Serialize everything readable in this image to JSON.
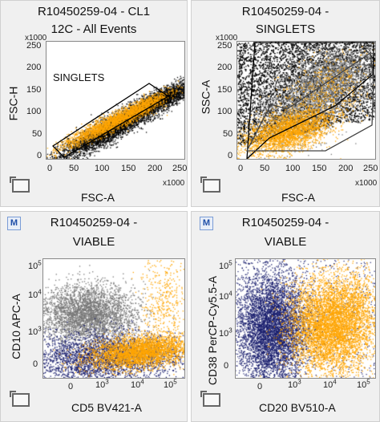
{
  "panels": [
    {
      "title_line1": "R10450259-04 - CL1",
      "title_line2": "12C - All Events",
      "ylabel": "FSC-H",
      "xlabel": "FSC-A",
      "y_mult": "x1000",
      "x_mult": "x1000",
      "yticks": [
        "250",
        "200",
        "150",
        "100",
        "50",
        "0"
      ],
      "xticks": [
        "0",
        "50",
        "100",
        "150",
        "200",
        "250"
      ],
      "gate_label": "SINGLETS"
    },
    {
      "title_line1": "R10450259-04 -",
      "title_line2": "SINGLETS",
      "ylabel": "SSC-A",
      "xlabel": "FSC-A",
      "y_mult": "x1000",
      "x_mult": "x1000",
      "yticks": [
        "250",
        "200",
        "150",
        "100",
        "50",
        "0"
      ],
      "xticks": [
        "0",
        "50",
        "100",
        "150",
        "200",
        "250"
      ]
    },
    {
      "title_line1": "R10450259-04 -",
      "title_line2": "VIABLE",
      "ylabel": "CD10 APC-A",
      "xlabel": "CD5 BV421-A",
      "badge": "M"
    },
    {
      "title_line1": "R10450259-04 -",
      "title_line2": "VIABLE",
      "ylabel": "CD38 PerCP-Cy5.5-A",
      "xlabel": "CD20 BV510-A",
      "badge": "M"
    }
  ],
  "colors": {
    "black_population": "#000000",
    "gray_population": "#777777",
    "orange_population": "#ffa500",
    "navy_population": "#1a1f6e",
    "panel_bg": "#f0f0f0"
  },
  "chart_data": [
    {
      "type": "scatter",
      "title": "R10450259-04 - CL1 12C - All Events",
      "xlabel": "FSC-A",
      "ylabel": "FSC-H",
      "xlim": [
        0,
        262
      ],
      "ylim": [
        0,
        262
      ],
      "scale_note": "x1000",
      "gate": {
        "name": "SINGLETS",
        "polygon": [
          [
            5,
            30
          ],
          [
            195,
            155
          ],
          [
            225,
            125
          ],
          [
            25,
            0
          ]
        ]
      },
      "series": [
        {
          "color": "black",
          "center": [
            130,
            85
          ],
          "slope": 0.55
        },
        {
          "color": "orange",
          "center": [
            110,
            80
          ],
          "slope": 0.45
        }
      ]
    },
    {
      "type": "scatter",
      "title": "R10450259-04 - SINGLETS",
      "xlabel": "FSC-A",
      "ylabel": "SSC-A",
      "xlim": [
        0,
        262
      ],
      "ylim": [
        0,
        262
      ],
      "scale_note": "x1000",
      "gates": [
        {
          "polygon": [
            [
              35,
              20
            ],
            [
              70,
              90
            ],
            [
              250,
              235
            ],
            [
              250,
              262
            ],
            [
              35,
              262
            ]
          ]
        },
        {
          "polygon": [
            [
              20,
              15
            ],
            [
              55,
              120
            ],
            [
              95,
              110
            ],
            [
              245,
              240
            ],
            [
              250,
              170
            ],
            [
              170,
              15
            ]
          ]
        }
      ],
      "series": [
        {
          "color": "black"
        },
        {
          "color": "gray"
        },
        {
          "color": "orange",
          "center": [
            100,
            55
          ]
        }
      ]
    },
    {
      "type": "scatter",
      "title": "R10450259-04 - VIABLE",
      "xlabel": "CD5 BV421-A",
      "ylabel": "CD10 APC-A",
      "x_ticks": [
        "0",
        "10^3",
        "10^4",
        "10^5"
      ],
      "y_ticks": [
        "0",
        "10^3",
        "10^4",
        "10^5"
      ],
      "series": [
        {
          "color": "gray",
          "center": [
            "~10^2.5",
            "~10^3.5"
          ]
        },
        {
          "color": "navy",
          "center": [
            "~10^3.5",
            "~10^2"
          ]
        },
        {
          "color": "orange",
          "center": [
            "~10^3.8",
            "~10^2"
          ]
        }
      ]
    },
    {
      "type": "scatter",
      "title": "R10450259-04 - VIABLE",
      "xlabel": "CD20 BV510-A",
      "ylabel": "CD38 PerCP-Cy5.5-A",
      "x_ticks": [
        "0",
        "10^3",
        "10^4",
        "10^5"
      ],
      "y_ticks": [
        "0",
        "10^3",
        "10^4",
        "10^5"
      ],
      "series": [
        {
          "color": "navy",
          "center": [
            "~0",
            "~10^3"
          ]
        },
        {
          "color": "orange",
          "center": [
            "~10^4",
            "~10^3.2"
          ]
        }
      ]
    }
  ]
}
